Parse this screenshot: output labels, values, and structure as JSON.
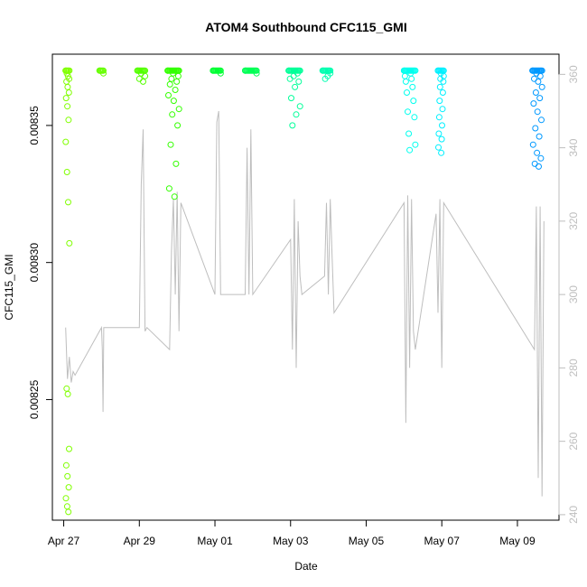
{
  "chart_data": {
    "type": "scatter",
    "title": "ATOM4 Southbound CFC115_GMI",
    "xlabel": "Date",
    "ylabel": "CFC115_GMI",
    "x_range_days": [
      -0.3,
      13.1
    ],
    "x_ticks": [
      {
        "label": "Apr 27",
        "day": 0
      },
      {
        "label": "Apr 29",
        "day": 2
      },
      {
        "label": "May 01",
        "day": 4
      },
      {
        "label": "May 03",
        "day": 6
      },
      {
        "label": "May 05",
        "day": 8
      },
      {
        "label": "May 07",
        "day": 10
      },
      {
        "label": "May 09",
        "day": 12
      }
    ],
    "y_left_range": [
      0.008206,
      0.008376
    ],
    "y_left_ticks": [
      {
        "label": "0.00825",
        "value": 0.00825
      },
      {
        "label": "0.00830",
        "value": 0.0083
      },
      {
        "label": "0.00835",
        "value": 0.00835
      }
    ],
    "y_right_range": [
      238.5,
      365.5
    ],
    "y_right_ticks": [
      {
        "label": "240",
        "value": 240
      },
      {
        "label": "260",
        "value": 260
      },
      {
        "label": "280",
        "value": 280
      },
      {
        "label": "300",
        "value": 300
      },
      {
        "label": "320",
        "value": 320
      },
      {
        "label": "340",
        "value": 340
      },
      {
        "label": "360",
        "value": 360
      }
    ],
    "right_axis_series": "gray line (secondary quantity, 240-360)",
    "marker_colors": {
      "apr27": "#80ff00",
      "apr28_30": "#4dff00",
      "may1_2": "#00ff40",
      "may3_4": "#00ffa0",
      "may6_7": "#00ffff",
      "may9": "#0099ff"
    },
    "line_color": "#bebebe",
    "scatter_clusters": [
      {
        "day_start": 0.05,
        "day_end": 0.15,
        "color": "#80ff00",
        "values": [
          0.00837,
          0.008369,
          0.008368,
          0.008367,
          0.008366,
          0.008364,
          0.008362,
          0.00836,
          0.008357,
          0.008352,
          0.008344,
          0.008333,
          0.008322,
          0.008307,
          0.008254,
          0.008252,
          0.008232,
          0.008226,
          0.008222,
          0.008218,
          0.008214,
          0.008211,
          0.008209
        ]
      },
      {
        "day_start": 0.95,
        "day_end": 1.05,
        "color": "#66ff00",
        "values": [
          0.00837,
          0.008369
        ]
      },
      {
        "day_start": 1.95,
        "day_end": 2.15,
        "color": "#55ff00",
        "values": [
          0.00837,
          0.008369,
          0.008368,
          0.008367,
          0.008366
        ]
      },
      {
        "day_start": 2.75,
        "day_end": 3.05,
        "color": "#33ff00",
        "values": [
          0.00837,
          0.008369,
          0.008368,
          0.008367,
          0.008366,
          0.008365,
          0.008363,
          0.008361,
          0.008359,
          0.008356,
          0.008354,
          0.00835,
          0.008343,
          0.008336,
          0.008327,
          0.008324
        ]
      },
      {
        "day_start": 3.95,
        "day_end": 4.15,
        "color": "#00ff33",
        "values": [
          0.00837,
          0.008369
        ]
      },
      {
        "day_start": 4.8,
        "day_end": 5.1,
        "color": "#00ff55",
        "values": [
          0.00837,
          0.008369
        ]
      },
      {
        "day_start": 5.95,
        "day_end": 6.25,
        "color": "#00ff99",
        "values": [
          0.00837,
          0.008369,
          0.008368,
          0.008367,
          0.008366,
          0.008364,
          0.00836,
          0.008357,
          0.008354,
          0.00835
        ]
      },
      {
        "day_start": 6.85,
        "day_end": 7.05,
        "color": "#00ffb0",
        "values": [
          0.00837,
          0.008369,
          0.008368,
          0.008367
        ]
      },
      {
        "day_start": 9.0,
        "day_end": 9.3,
        "color": "#00ffee",
        "values": [
          0.00837,
          0.008369,
          0.008368,
          0.008367,
          0.008366,
          0.008364,
          0.008362,
          0.008359,
          0.008355,
          0.008353,
          0.008347,
          0.008343,
          0.008341
        ]
      },
      {
        "day_start": 9.9,
        "day_end": 10.05,
        "color": "#00f0ff",
        "values": [
          0.00837,
          0.008369,
          0.008368,
          0.008367,
          0.008366,
          0.008364,
          0.008362,
          0.008359,
          0.008356,
          0.008353,
          0.00835,
          0.008347,
          0.008345,
          0.008342,
          0.00834
        ]
      },
      {
        "day_start": 12.4,
        "day_end": 12.65,
        "color": "#0099ff",
        "values": [
          0.00837,
          0.008369,
          0.008368,
          0.008367,
          0.008366,
          0.008364,
          0.008362,
          0.00836,
          0.008358,
          0.008355,
          0.008352,
          0.008349,
          0.008346,
          0.008343,
          0.00834,
          0.008338,
          0.008336,
          0.008335
        ]
      }
    ],
    "line_points": [
      [
        0.05,
        291
      ],
      [
        0.1,
        277
      ],
      [
        0.15,
        283
      ],
      [
        0.2,
        276
      ],
      [
        0.25,
        279
      ],
      [
        0.3,
        278
      ],
      [
        1.0,
        291
      ],
      [
        1.02,
        285
      ],
      [
        1.04,
        268
      ],
      [
        1.06,
        291
      ],
      [
        1.08,
        291
      ],
      [
        1.95,
        291
      ],
      [
        2.0,
        291
      ],
      [
        2.05,
        330
      ],
      [
        2.1,
        345
      ],
      [
        2.15,
        290
      ],
      [
        2.2,
        291
      ],
      [
        2.8,
        285
      ],
      [
        2.85,
        312
      ],
      [
        2.9,
        326
      ],
      [
        2.95,
        300
      ],
      [
        3.0,
        328
      ],
      [
        3.05,
        290
      ],
      [
        3.1,
        325
      ],
      [
        4.0,
        300
      ],
      [
        4.05,
        347
      ],
      [
        4.1,
        350
      ],
      [
        4.15,
        300
      ],
      [
        4.8,
        300
      ],
      [
        4.85,
        340
      ],
      [
        4.9,
        300
      ],
      [
        4.95,
        345
      ],
      [
        5.0,
        300
      ],
      [
        6.0,
        315
      ],
      [
        6.05,
        285
      ],
      [
        6.1,
        326
      ],
      [
        6.15,
        280
      ],
      [
        6.2,
        320
      ],
      [
        6.25,
        305
      ],
      [
        6.3,
        300
      ],
      [
        6.9,
        305
      ],
      [
        6.95,
        325
      ],
      [
        7.0,
        300
      ],
      [
        7.05,
        326
      ],
      [
        7.1,
        310
      ],
      [
        7.15,
        295
      ],
      [
        9.0,
        325
      ],
      [
        9.05,
        265
      ],
      [
        9.1,
        327
      ],
      [
        9.15,
        280
      ],
      [
        9.2,
        326
      ],
      [
        9.25,
        290
      ],
      [
        9.3,
        285
      ],
      [
        9.85,
        322
      ],
      [
        9.9,
        295
      ],
      [
        9.95,
        326
      ],
      [
        10.0,
        280
      ],
      [
        10.05,
        325
      ],
      [
        12.45,
        285
      ],
      [
        12.5,
        324
      ],
      [
        12.55,
        250
      ],
      [
        12.6,
        324
      ],
      [
        12.65,
        245
      ],
      [
        12.7,
        320
      ]
    ]
  }
}
